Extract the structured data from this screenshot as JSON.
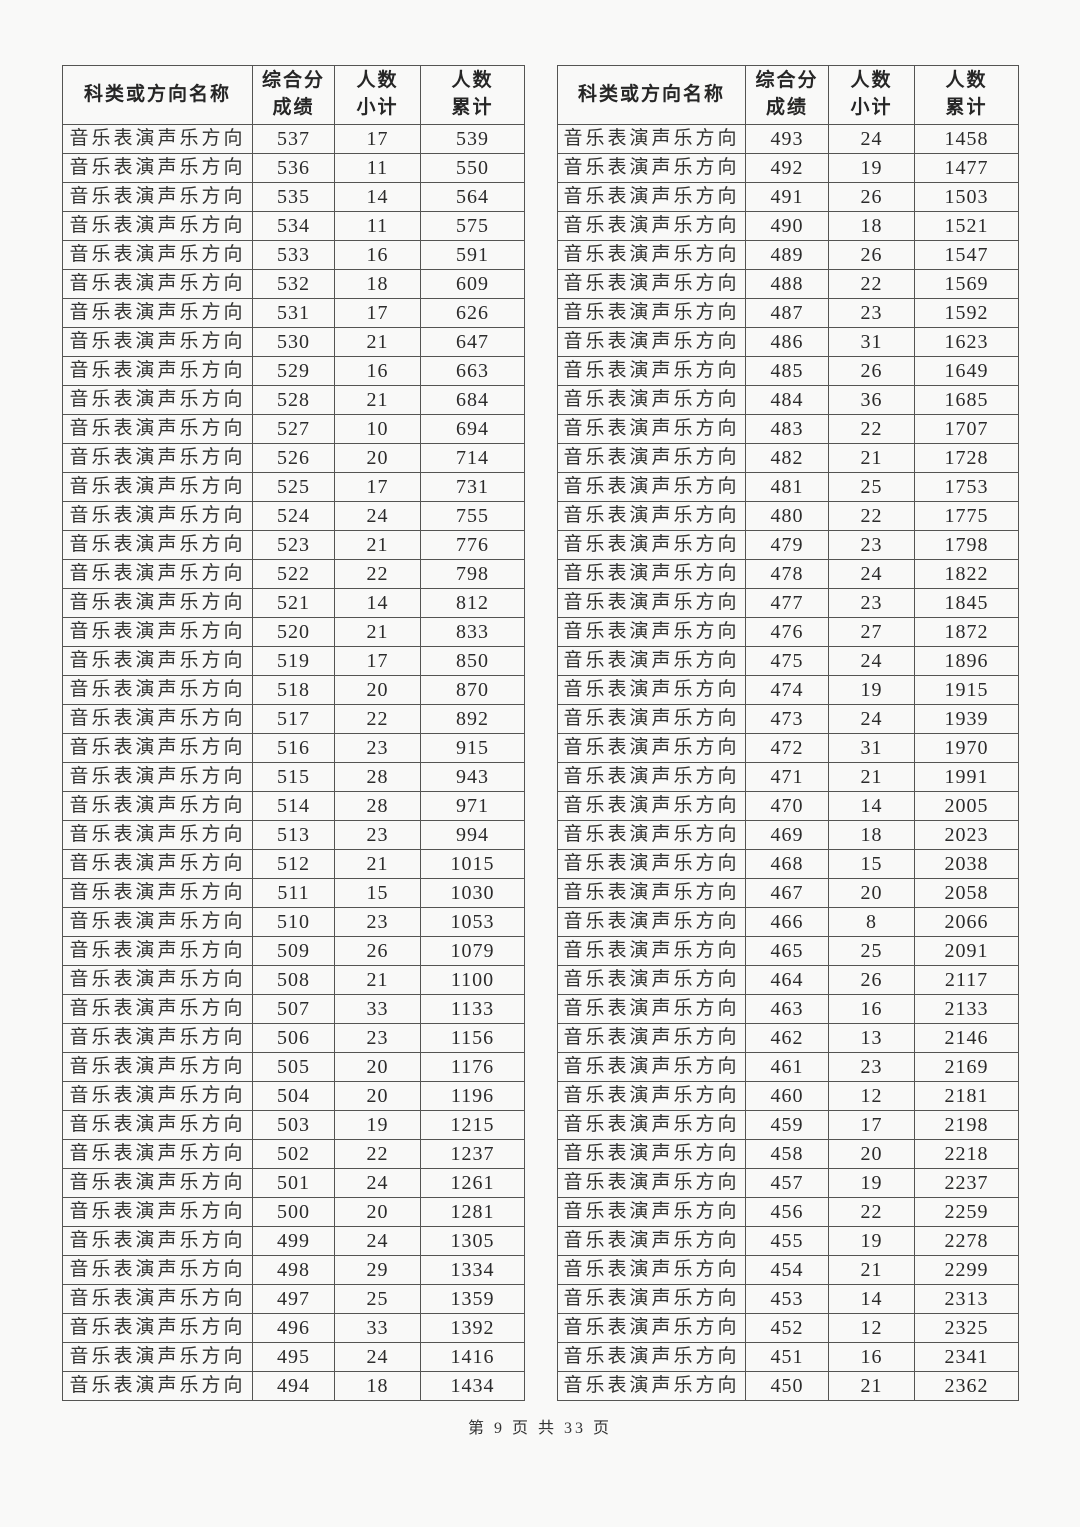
{
  "document": {
    "footer": "第 9 页 共 33 页"
  },
  "columns": [
    "科类或方向名称",
    "综合分\n成绩",
    "人数\n小计",
    "人数\n累计"
  ],
  "category_name": "音乐表演声乐方向",
  "left_table": {
    "rows": [
      [
        537,
        17,
        539
      ],
      [
        536,
        11,
        550
      ],
      [
        535,
        14,
        564
      ],
      [
        534,
        11,
        575
      ],
      [
        533,
        16,
        591
      ],
      [
        532,
        18,
        609
      ],
      [
        531,
        17,
        626
      ],
      [
        530,
        21,
        647
      ],
      [
        529,
        16,
        663
      ],
      [
        528,
        21,
        684
      ],
      [
        527,
        10,
        694
      ],
      [
        526,
        20,
        714
      ],
      [
        525,
        17,
        731
      ],
      [
        524,
        24,
        755
      ],
      [
        523,
        21,
        776
      ],
      [
        522,
        22,
        798
      ],
      [
        521,
        14,
        812
      ],
      [
        520,
        21,
        833
      ],
      [
        519,
        17,
        850
      ],
      [
        518,
        20,
        870
      ],
      [
        517,
        22,
        892
      ],
      [
        516,
        23,
        915
      ],
      [
        515,
        28,
        943
      ],
      [
        514,
        28,
        971
      ],
      [
        513,
        23,
        994
      ],
      [
        512,
        21,
        1015
      ],
      [
        511,
        15,
        1030
      ],
      [
        510,
        23,
        1053
      ],
      [
        509,
        26,
        1079
      ],
      [
        508,
        21,
        1100
      ],
      [
        507,
        33,
        1133
      ],
      [
        506,
        23,
        1156
      ],
      [
        505,
        20,
        1176
      ],
      [
        504,
        20,
        1196
      ],
      [
        503,
        19,
        1215
      ],
      [
        502,
        22,
        1237
      ],
      [
        501,
        24,
        1261
      ],
      [
        500,
        20,
        1281
      ],
      [
        499,
        24,
        1305
      ],
      [
        498,
        29,
        1334
      ],
      [
        497,
        25,
        1359
      ],
      [
        496,
        33,
        1392
      ],
      [
        495,
        24,
        1416
      ],
      [
        494,
        18,
        1434
      ]
    ]
  },
  "right_table": {
    "rows": [
      [
        493,
        24,
        1458
      ],
      [
        492,
        19,
        1477
      ],
      [
        491,
        26,
        1503
      ],
      [
        490,
        18,
        1521
      ],
      [
        489,
        26,
        1547
      ],
      [
        488,
        22,
        1569
      ],
      [
        487,
        23,
        1592
      ],
      [
        486,
        31,
        1623
      ],
      [
        485,
        26,
        1649
      ],
      [
        484,
        36,
        1685
      ],
      [
        483,
        22,
        1707
      ],
      [
        482,
        21,
        1728
      ],
      [
        481,
        25,
        1753
      ],
      [
        480,
        22,
        1775
      ],
      [
        479,
        23,
        1798
      ],
      [
        478,
        24,
        1822
      ],
      [
        477,
        23,
        1845
      ],
      [
        476,
        27,
        1872
      ],
      [
        475,
        24,
        1896
      ],
      [
        474,
        19,
        1915
      ],
      [
        473,
        24,
        1939
      ],
      [
        472,
        31,
        1970
      ],
      [
        471,
        21,
        1991
      ],
      [
        470,
        14,
        2005
      ],
      [
        469,
        18,
        2023
      ],
      [
        468,
        15,
        2038
      ],
      [
        467,
        20,
        2058
      ],
      [
        466,
        8,
        2066
      ],
      [
        465,
        25,
        2091
      ],
      [
        464,
        26,
        2117
      ],
      [
        463,
        16,
        2133
      ],
      [
        462,
        13,
        2146
      ],
      [
        461,
        23,
        2169
      ],
      [
        460,
        12,
        2181
      ],
      [
        459,
        17,
        2198
      ],
      [
        458,
        20,
        2218
      ],
      [
        457,
        19,
        2237
      ],
      [
        456,
        22,
        2259
      ],
      [
        455,
        19,
        2278
      ],
      [
        454,
        21,
        2299
      ],
      [
        453,
        14,
        2313
      ],
      [
        452,
        12,
        2325
      ],
      [
        451,
        16,
        2341
      ],
      [
        450,
        21,
        2362
      ]
    ]
  }
}
